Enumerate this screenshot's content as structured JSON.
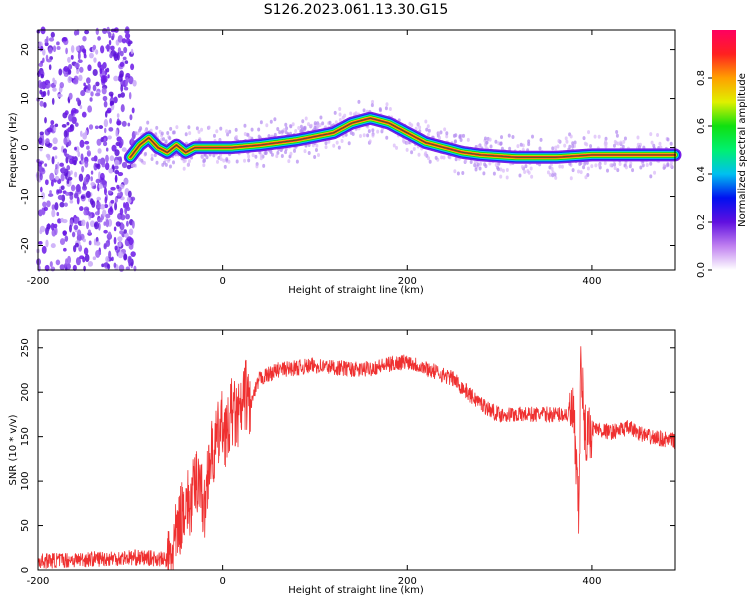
{
  "title": "S126.2023.061.13.30.G15",
  "colors": {
    "snr_line": "#ef3030",
    "track": "#e8202c",
    "noise": "#6b18e8",
    "frame": "#000000"
  },
  "chart_data": [
    {
      "type": "heatmap",
      "title": "S126.2023.061.13.30.G15",
      "xlabel": "Height of straight line (km)",
      "ylabel": "Frequency (Hz)",
      "xlim": [
        -200,
        490
      ],
      "ylim": [
        -25,
        24
      ],
      "xticks": [
        -200,
        0,
        200,
        400
      ],
      "yticks": [
        -20,
        -10,
        0,
        10,
        20
      ],
      "grid": false,
      "noise_region_x": [
        -200,
        -95
      ],
      "ridge": {
        "x": [
          -100,
          -90,
          -80,
          -70,
          -60,
          -50,
          -40,
          -30,
          -10,
          10,
          40,
          80,
          120,
          140,
          160,
          180,
          200,
          220,
          240,
          260,
          280,
          320,
          360,
          400,
          440,
          490
        ],
        "y": [
          -2,
          0.5,
          2,
          0,
          -1,
          0.5,
          -1,
          0,
          0,
          0,
          0.5,
          1.5,
          3,
          5,
          6,
          5,
          3,
          1,
          0,
          -1,
          -1.5,
          -2,
          -2,
          -1.5,
          -1.5,
          -1.5
        ]
      },
      "colorbar": {
        "label": "Normalized spectral amplitude",
        "range": [
          0,
          1
        ],
        "ticks": [
          "0.0",
          "0.2",
          "0.4",
          "0.6",
          "0.8"
        ],
        "colors": [
          "#ffffff",
          "#c080f0",
          "#6010e0",
          "#0010f0",
          "#00c0f0",
          "#00f070",
          "#10e010",
          "#e0f000",
          "#ffa000",
          "#ff2020",
          "#ff0060"
        ]
      }
    },
    {
      "type": "line",
      "xlabel": "Height of straight line (km)",
      "ylabel": "SNR (10 * v/v)",
      "xlim": [
        -200,
        490
      ],
      "ylim": [
        0,
        270
      ],
      "xticks": [
        -200,
        0,
        200,
        400
      ],
      "yticks": [
        0,
        50,
        100,
        150,
        200,
        250
      ],
      "grid": false,
      "series": [
        {
          "x": [
            -200,
            -150,
            -100,
            -70,
            -58,
            -52,
            -45,
            -40,
            -35,
            -30,
            -25,
            -20,
            -15,
            -10,
            -5,
            0,
            5,
            10,
            15,
            20,
            25,
            30,
            40,
            60,
            100,
            150,
            200,
            250,
            270,
            290,
            300,
            340,
            380,
            384,
            386,
            388,
            392,
            400,
            420,
            440,
            460,
            490
          ],
          "values": [
            10,
            12,
            14,
            13,
            10,
            30,
            60,
            80,
            70,
            95,
            110,
            60,
            125,
            130,
            150,
            165,
            150,
            180,
            170,
            175,
            200,
            185,
            215,
            225,
            230,
            225,
            235,
            215,
            195,
            180,
            175,
            175,
            175,
            90,
            60,
            250,
            150,
            160,
            155,
            160,
            150,
            145
          ]
        }
      ]
    }
  ]
}
